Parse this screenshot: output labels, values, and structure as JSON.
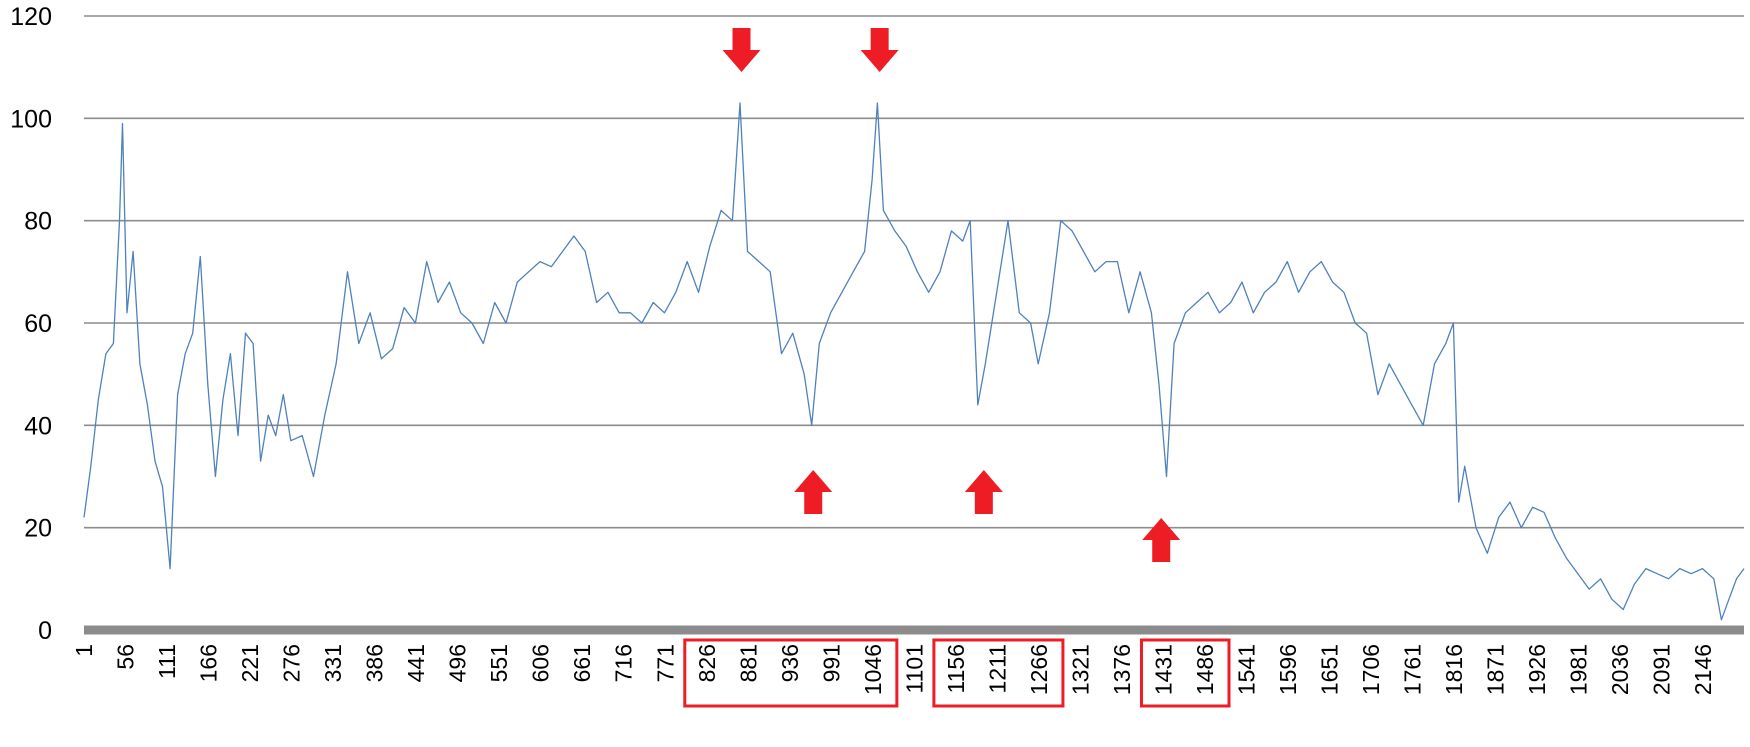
{
  "chart_data": {
    "type": "line",
    "title": "",
    "xlabel": "",
    "ylabel": "",
    "ylim": [
      0,
      120
    ],
    "xlim": [
      1,
      2200
    ],
    "y_ticks": [
      0,
      20,
      40,
      60,
      80,
      100,
      120
    ],
    "x_ticks": [
      1,
      56,
      111,
      166,
      221,
      276,
      331,
      386,
      441,
      496,
      551,
      606,
      661,
      716,
      771,
      826,
      881,
      936,
      991,
      1046,
      1101,
      1156,
      1211,
      1266,
      1321,
      1376,
      1431,
      1486,
      1541,
      1596,
      1651,
      1706,
      1761,
      1816,
      1871,
      1926,
      1981,
      2036,
      2091,
      2146
    ],
    "grid": true,
    "legend": "none",
    "colors": {
      "series": "#4f81bd",
      "gridline": "#8c8c8c",
      "axis": "#8c8c8c",
      "marker": "#ee1c24"
    },
    "series": [
      {
        "values": [
          [
            1,
            22
          ],
          [
            10,
            32
          ],
          [
            20,
            45
          ],
          [
            30,
            54
          ],
          [
            40,
            56
          ],
          [
            48,
            80
          ],
          [
            52,
            99
          ],
          [
            58,
            62
          ],
          [
            66,
            74
          ],
          [
            75,
            52
          ],
          [
            85,
            44
          ],
          [
            95,
            33
          ],
          [
            105,
            28
          ],
          [
            115,
            12
          ],
          [
            125,
            46
          ],
          [
            135,
            54
          ],
          [
            145,
            58
          ],
          [
            155,
            73
          ],
          [
            165,
            48
          ],
          [
            175,
            30
          ],
          [
            185,
            45
          ],
          [
            195,
            54
          ],
          [
            205,
            38
          ],
          [
            215,
            58
          ],
          [
            225,
            56
          ],
          [
            235,
            33
          ],
          [
            245,
            42
          ],
          [
            255,
            38
          ],
          [
            265,
            46
          ],
          [
            275,
            37
          ],
          [
            290,
            38
          ],
          [
            305,
            30
          ],
          [
            320,
            42
          ],
          [
            335,
            52
          ],
          [
            350,
            70
          ],
          [
            365,
            56
          ],
          [
            380,
            62
          ],
          [
            395,
            53
          ],
          [
            410,
            55
          ],
          [
            425,
            63
          ],
          [
            440,
            60
          ],
          [
            455,
            72
          ],
          [
            470,
            64
          ],
          [
            485,
            68
          ],
          [
            500,
            62
          ],
          [
            515,
            60
          ],
          [
            530,
            56
          ],
          [
            545,
            64
          ],
          [
            560,
            60
          ],
          [
            575,
            68
          ],
          [
            590,
            70
          ],
          [
            605,
            72
          ],
          [
            620,
            71
          ],
          [
            635,
            74
          ],
          [
            650,
            77
          ],
          [
            665,
            74
          ],
          [
            680,
            64
          ],
          [
            695,
            66
          ],
          [
            710,
            62
          ],
          [
            725,
            62
          ],
          [
            740,
            60
          ],
          [
            755,
            64
          ],
          [
            770,
            62
          ],
          [
            785,
            66
          ],
          [
            800,
            72
          ],
          [
            815,
            66
          ],
          [
            830,
            75
          ],
          [
            845,
            82
          ],
          [
            860,
            80
          ],
          [
            870,
            103
          ],
          [
            880,
            74
          ],
          [
            895,
            72
          ],
          [
            910,
            70
          ],
          [
            925,
            54
          ],
          [
            940,
            58
          ],
          [
            955,
            50
          ],
          [
            965,
            40
          ],
          [
            975,
            56
          ],
          [
            990,
            62
          ],
          [
            1005,
            66
          ],
          [
            1020,
            70
          ],
          [
            1035,
            74
          ],
          [
            1045,
            88
          ],
          [
            1052,
            103
          ],
          [
            1060,
            82
          ],
          [
            1075,
            78
          ],
          [
            1090,
            75
          ],
          [
            1105,
            70
          ],
          [
            1120,
            66
          ],
          [
            1135,
            70
          ],
          [
            1150,
            78
          ],
          [
            1165,
            76
          ],
          [
            1175,
            80
          ],
          [
            1185,
            44
          ],
          [
            1195,
            52
          ],
          [
            1210,
            66
          ],
          [
            1225,
            80
          ],
          [
            1240,
            62
          ],
          [
            1255,
            60
          ],
          [
            1265,
            52
          ],
          [
            1280,
            62
          ],
          [
            1295,
            80
          ],
          [
            1310,
            78
          ],
          [
            1325,
            74
          ],
          [
            1340,
            70
          ],
          [
            1355,
            72
          ],
          [
            1370,
            72
          ],
          [
            1385,
            62
          ],
          [
            1400,
            70
          ],
          [
            1415,
            62
          ],
          [
            1425,
            48
          ],
          [
            1435,
            30
          ],
          [
            1445,
            56
          ],
          [
            1460,
            62
          ],
          [
            1475,
            64
          ],
          [
            1490,
            66
          ],
          [
            1505,
            62
          ],
          [
            1520,
            64
          ],
          [
            1535,
            68
          ],
          [
            1550,
            62
          ],
          [
            1565,
            66
          ],
          [
            1580,
            68
          ],
          [
            1595,
            72
          ],
          [
            1610,
            66
          ],
          [
            1625,
            70
          ],
          [
            1640,
            72
          ],
          [
            1655,
            68
          ],
          [
            1670,
            66
          ],
          [
            1685,
            60
          ],
          [
            1700,
            58
          ],
          [
            1715,
            46
          ],
          [
            1730,
            52
          ],
          [
            1745,
            48
          ],
          [
            1760,
            44
          ],
          [
            1775,
            40
          ],
          [
            1790,
            52
          ],
          [
            1805,
            56
          ],
          [
            1815,
            60
          ],
          [
            1822,
            25
          ],
          [
            1830,
            32
          ],
          [
            1845,
            20
          ],
          [
            1860,
            15
          ],
          [
            1875,
            22
          ],
          [
            1890,
            25
          ],
          [
            1905,
            20
          ],
          [
            1920,
            24
          ],
          [
            1935,
            23
          ],
          [
            1950,
            18
          ],
          [
            1965,
            14
          ],
          [
            1980,
            11
          ],
          [
            1995,
            8
          ],
          [
            2010,
            10
          ],
          [
            2025,
            6
          ],
          [
            2040,
            4
          ],
          [
            2055,
            9
          ],
          [
            2070,
            12
          ],
          [
            2085,
            11
          ],
          [
            2100,
            10
          ],
          [
            2115,
            12
          ],
          [
            2130,
            11
          ],
          [
            2145,
            12
          ],
          [
            2160,
            10
          ],
          [
            2170,
            2
          ],
          [
            2180,
            6
          ],
          [
            2190,
            10
          ],
          [
            2200,
            12
          ]
        ]
      }
    ],
    "annotations": {
      "arrows_down": [
        872,
        1055
      ],
      "arrows_up": [
        967,
        1193,
        1428
      ],
      "highlight_ranges": [
        [
          826,
          1046
        ],
        [
          1156,
          1266
        ],
        [
          1431,
          1486
        ]
      ]
    }
  }
}
